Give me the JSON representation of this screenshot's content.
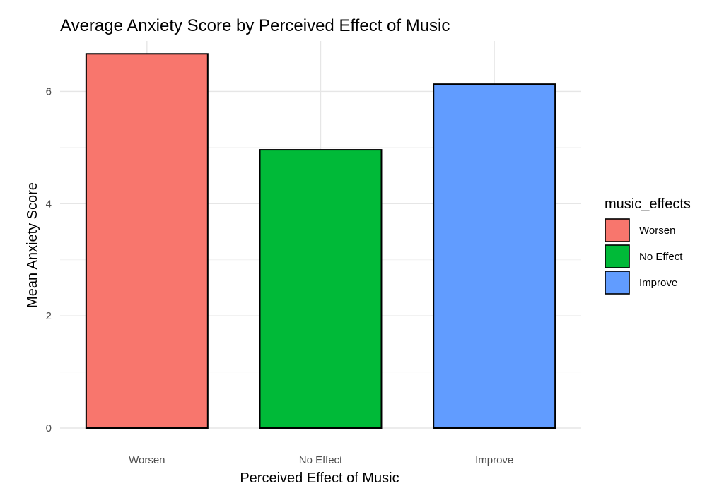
{
  "chart_data": {
    "type": "bar",
    "title": "Average Anxiety Score by Perceived Effect of Music",
    "xlabel": "Perceived Effect of Music",
    "ylabel": "Mean Anxiety Score",
    "categories": [
      "Worsen",
      "No Effect",
      "Improve"
    ],
    "values": [
      6.67,
      4.96,
      6.13
    ],
    "colors": [
      "#F8766D",
      "#00BA38",
      "#619CFF"
    ],
    "ylim": [
      0,
      6.9
    ],
    "y_ticks": [
      0,
      2,
      4,
      6
    ],
    "grid": true,
    "legend": {
      "title": "music_effects",
      "placement": "right",
      "entries": [
        "Worsen",
        "No Effect",
        "Improve"
      ]
    }
  }
}
